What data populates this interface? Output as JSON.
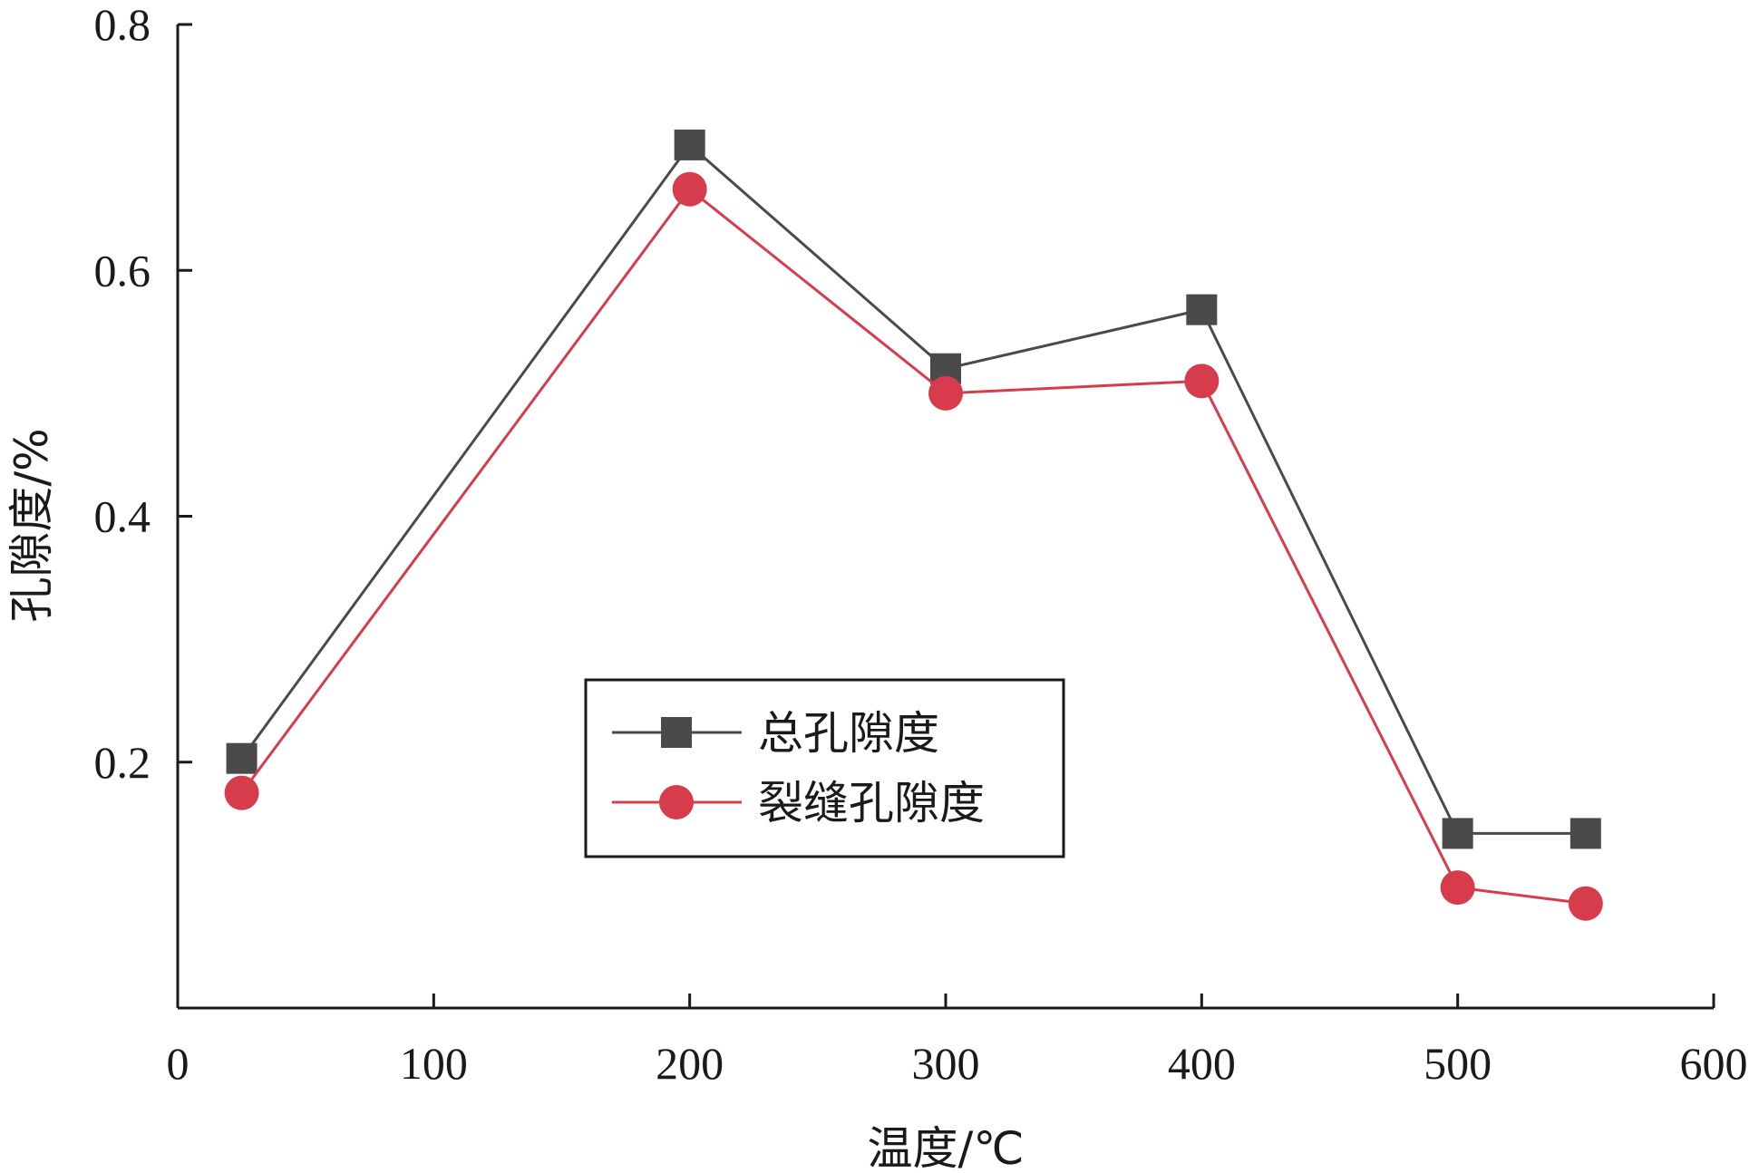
{
  "chart_data": {
    "type": "line",
    "title": "",
    "xlabel": "温度/℃",
    "ylabel": "孔隙度/%",
    "xlim": [
      0,
      600
    ],
    "ylim": [
      0,
      0.8
    ],
    "x_ticks": [
      0,
      100,
      200,
      300,
      400,
      500,
      600
    ],
    "x_tick_labels": [
      "0",
      "100",
      "200",
      "300",
      "400",
      "500",
      "600"
    ],
    "y_ticks": [
      0.2,
      0.4,
      0.6,
      0.8
    ],
    "y_tick_labels": [
      "0.2",
      "0.4",
      "0.6",
      "0.8"
    ],
    "grid": false,
    "legend_position": "center",
    "x": [
      25,
      200,
      300,
      400,
      500,
      550
    ],
    "series": [
      {
        "name": "总孔隙度",
        "values": [
          0.203,
          0.702,
          0.52,
          0.568,
          0.142,
          0.142
        ],
        "color": "#4a4a4a",
        "marker": "square"
      },
      {
        "name": "裂缝孔隙度",
        "values": [
          0.175,
          0.666,
          0.5,
          0.51,
          0.098,
          0.085
        ],
        "color": "#d63c4b",
        "marker": "circle"
      }
    ]
  }
}
